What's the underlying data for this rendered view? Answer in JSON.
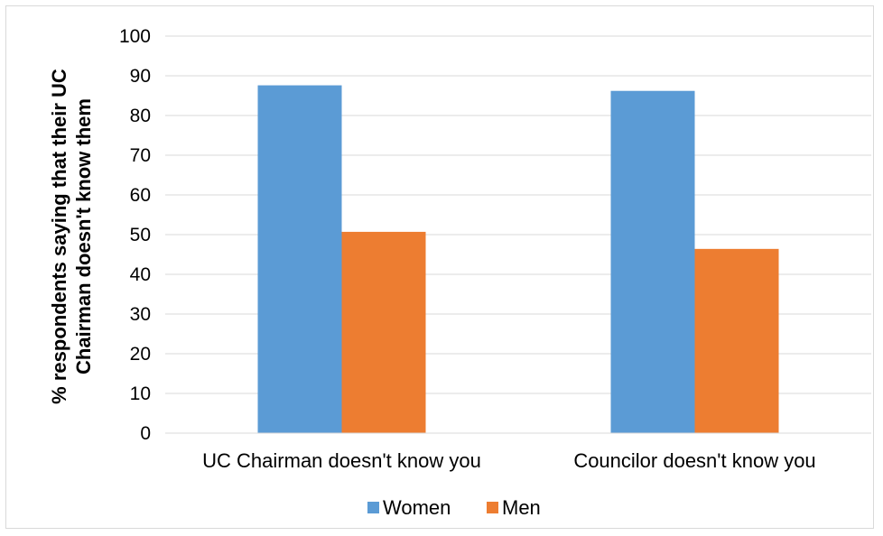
{
  "chart_data": {
    "type": "bar",
    "categories": [
      "UC Chairman doesn't know you",
      "Councilor doesn't know you"
    ],
    "series": [
      {
        "name": "Women",
        "values": [
          87.6,
          86.2
        ],
        "color": "#5b9bd5"
      },
      {
        "name": "Men",
        "values": [
          50.7,
          46.4
        ],
        "color": "#ed7d31"
      }
    ],
    "ylabel_lines": [
      "% respondents saying that their UC",
      "Chairman doesn't know them"
    ],
    "ylim": [
      0,
      100
    ],
    "yticks": [
      "0",
      "10",
      "20",
      "30",
      "40",
      "50",
      "60",
      "70",
      "80",
      "90",
      "100"
    ],
    "grid": true,
    "legend": "bottom"
  }
}
